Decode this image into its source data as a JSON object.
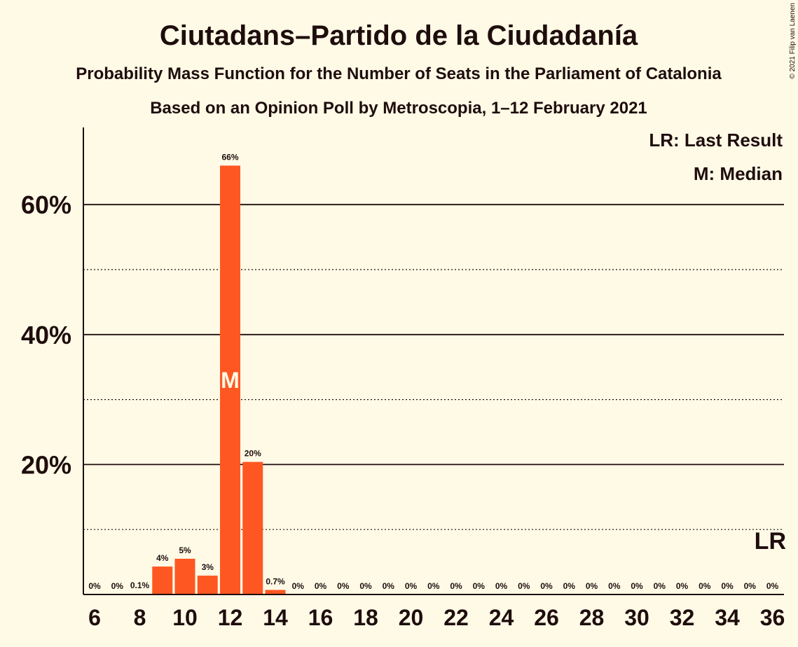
{
  "title": "Ciutadans–Partido de la Ciudadanía",
  "subtitle1": "Probability Mass Function for the Number of Seats in the Parliament of Catalonia",
  "subtitle2": "Based on an Opinion Poll by Metroscopia, 1–12 February 2021",
  "copyright": "© 2021 Filip van Laenen",
  "legend": {
    "last_result": "LR: Last Result",
    "median": "M: Median"
  },
  "markers": {
    "median_label": "M",
    "median_seat": 12,
    "last_result_label": "LR",
    "last_result_seat": 36
  },
  "colors": {
    "background": "#fefae6",
    "bar": "#ff5722",
    "text": "#1f0d0d",
    "median_text": "#fefae6"
  },
  "chart_data": {
    "type": "bar",
    "x": [
      6,
      7,
      8,
      9,
      10,
      11,
      12,
      13,
      14,
      15,
      16,
      17,
      18,
      19,
      20,
      21,
      22,
      23,
      24,
      25,
      26,
      27,
      28,
      29,
      30,
      31,
      32,
      33,
      34,
      35,
      36
    ],
    "values": [
      0,
      0,
      0.1,
      4.3,
      5.5,
      2.9,
      66,
      20.4,
      0.7,
      0,
      0,
      0,
      0,
      0,
      0,
      0,
      0,
      0,
      0,
      0,
      0,
      0,
      0,
      0,
      0,
      0,
      0,
      0,
      0,
      0,
      0
    ],
    "data_labels": [
      "0%",
      "0%",
      "0.1%",
      "4%",
      "5%",
      "3%",
      "66%",
      "20%",
      "0.7%",
      "0%",
      "0%",
      "0%",
      "0%",
      "0%",
      "0%",
      "0%",
      "0%",
      "0%",
      "0%",
      "0%",
      "0%",
      "0%",
      "0%",
      "0%",
      "0%",
      "0%",
      "0%",
      "0%",
      "0%",
      "0%",
      "0%"
    ],
    "x_tick_labels": [
      "6",
      "8",
      "10",
      "12",
      "14",
      "16",
      "18",
      "20",
      "22",
      "24",
      "26",
      "28",
      "30",
      "32",
      "34",
      "36"
    ],
    "y_tick_labels": [
      {
        "value": 20,
        "label": "20%"
      },
      {
        "value": 40,
        "label": "40%"
      },
      {
        "value": 60,
        "label": "60%"
      }
    ],
    "minor_gridlines": [
      10,
      30,
      50
    ],
    "ylim": [
      0,
      72
    ],
    "grid": true,
    "legend_position": "top-right"
  }
}
